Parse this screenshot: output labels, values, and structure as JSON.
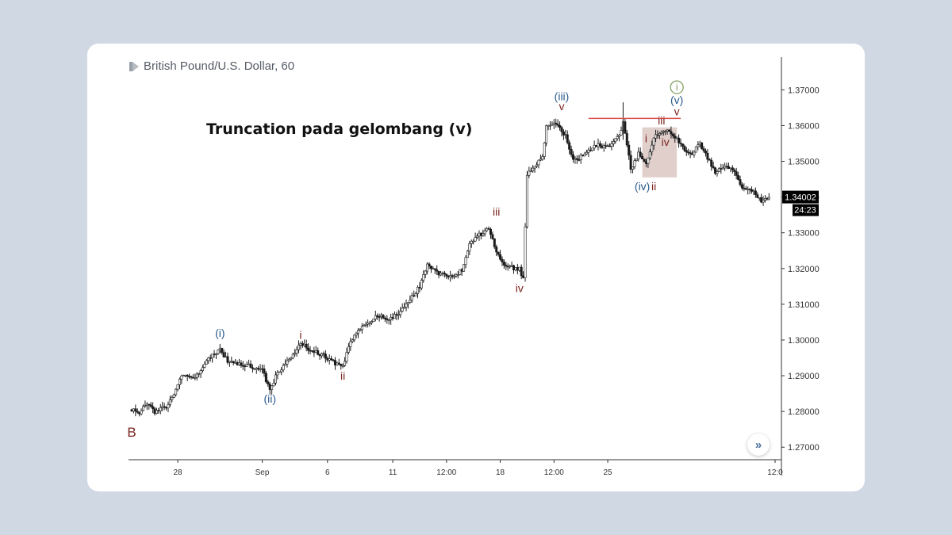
{
  "header": {
    "symbol_title": "British Pound/U.S. Dollar, 60"
  },
  "annotation": "Truncation pada gelombang (v)",
  "nav_button_glyph": "»",
  "colors": {
    "background": "#d0d9e3",
    "candle": "#1a1a1a",
    "wave_blue": "#2a5a8c",
    "wave_brown": "#7a2620",
    "truncation_line": "#d9534f",
    "highlight_box": "#c9a7a3",
    "circle_label": "#7a9a5a",
    "price_tag_bg": "#000000"
  },
  "chart_data": {
    "type": "candlestick",
    "title": "British Pound/U.S. Dollar, 60",
    "x_tick_labels": [
      "28",
      "Sep",
      "6",
      "11",
      "12:00",
      "18",
      "12:00",
      "25",
      "12:0"
    ],
    "y_ticks": [
      1.27,
      1.28,
      1.29,
      1.3,
      1.31,
      1.32,
      1.33,
      1.34,
      1.35,
      1.36,
      1.37
    ],
    "y_tick_labels": [
      "1.27000",
      "1.28000",
      "1.29000",
      "1.30000",
      "1.31000",
      "1.32000",
      "1.33000",
      "1.34000",
      "1.35000",
      "1.36000",
      "1.37000"
    ],
    "ylim": [
      1.2665,
      1.3785
    ],
    "last_price": "1.34002",
    "countdown": "24:23",
    "path": [
      [
        0,
        1.2805
      ],
      [
        2,
        1.2795
      ],
      [
        4,
        1.2825
      ],
      [
        6,
        1.28
      ],
      [
        9,
        1.2815
      ],
      [
        11,
        1.285
      ],
      [
        13,
        1.29
      ],
      [
        16,
        1.289
      ],
      [
        20,
        1.2945
      ],
      [
        23,
        1.2975
      ],
      [
        25,
        1.294
      ],
      [
        30,
        1.293
      ],
      [
        34,
        1.2915
      ],
      [
        36,
        1.286
      ],
      [
        38,
        1.291
      ],
      [
        40,
        1.293
      ],
      [
        42,
        1.296
      ],
      [
        44,
        1.299
      ],
      [
        47,
        1.297
      ],
      [
        50,
        1.2955
      ],
      [
        53,
        1.2935
      ],
      [
        55,
        1.2925
      ],
      [
        57,
        1.2995
      ],
      [
        59,
        1.303
      ],
      [
        61,
        1.304
      ],
      [
        64,
        1.307
      ],
      [
        67,
        1.3055
      ],
      [
        71,
        1.309
      ],
      [
        73,
        1.312
      ],
      [
        75,
        1.315
      ],
      [
        77,
        1.321
      ],
      [
        80,
        1.3185
      ],
      [
        83,
        1.3175
      ],
      [
        86,
        1.3195
      ],
      [
        88,
        1.327
      ],
      [
        90,
        1.329
      ],
      [
        93,
        1.331
      ],
      [
        95,
        1.325
      ],
      [
        97,
        1.3205
      ],
      [
        101,
        1.32
      ],
      [
        102,
        1.317
      ],
      [
        103,
        1.346
      ],
      [
        105,
        1.349
      ],
      [
        107,
        1.351
      ],
      [
        108,
        1.36
      ],
      [
        111,
        1.3605
      ],
      [
        113,
        1.357
      ],
      [
        115,
        1.35
      ],
      [
        118,
        1.352
      ],
      [
        121,
        1.3545
      ],
      [
        124,
        1.354
      ],
      [
        127,
        1.357
      ],
      [
        128,
        1.3605
      ],
      [
        130,
        1.348
      ],
      [
        132,
        1.352
      ],
      [
        134,
        1.349
      ],
      [
        136,
        1.357
      ],
      [
        138,
        1.358
      ],
      [
        140,
        1.3585
      ],
      [
        142,
        1.356
      ],
      [
        144,
        1.353
      ],
      [
        146,
        1.352
      ],
      [
        148,
        1.355
      ],
      [
        150,
        1.351
      ],
      [
        152,
        1.347
      ],
      [
        155,
        1.349
      ],
      [
        157,
        1.347
      ],
      [
        159,
        1.343
      ],
      [
        162,
        1.3415
      ],
      [
        164,
        1.339
      ],
      [
        166,
        1.34
      ]
    ],
    "truncation_level": 1.362,
    "truncation_line_x": [
      119,
      143
    ],
    "highlight_box": {
      "x": [
        133,
        142
      ],
      "y": [
        1.3455,
        1.3595
      ]
    },
    "wave_labels": [
      {
        "text": "(i)",
        "x": 23,
        "y": 1.2995,
        "group": "blue",
        "pos": "above"
      },
      {
        "text": "(ii)",
        "x": 36,
        "y": 1.286,
        "group": "blue",
        "pos": "below"
      },
      {
        "text": "i",
        "x": 44,
        "y": 1.299,
        "group": "brown",
        "pos": "above"
      },
      {
        "text": "ii",
        "x": 55,
        "y": 1.2925,
        "group": "brown",
        "pos": "below"
      },
      {
        "text": "iii",
        "x": 95,
        "y": 1.3335,
        "group": "brown",
        "pos": "above"
      },
      {
        "text": "iv",
        "x": 101,
        "y": 1.317,
        "group": "brown",
        "pos": "below"
      },
      {
        "text": "(iii)",
        "x": 112,
        "y": 1.3657,
        "group": "blue",
        "pos": "above"
      },
      {
        "text": "v",
        "x": 112,
        "y": 1.363,
        "group": "brown",
        "pos": "above"
      },
      {
        "text": "(iv)",
        "x": 133,
        "y": 1.3455,
        "group": "blue",
        "pos": "below"
      },
      {
        "text": "i",
        "x": 134,
        "y": 1.354,
        "group": "brown",
        "pos": "above"
      },
      {
        "text": "ii",
        "x": 136,
        "y": 1.3455,
        "group": "brown",
        "pos": "below"
      },
      {
        "text": "iii",
        "x": 138,
        "y": 1.359,
        "group": "brown",
        "pos": "above"
      },
      {
        "text": "iv",
        "x": 139,
        "y": 1.353,
        "group": "brown",
        "pos": "above"
      },
      {
        "text": "v",
        "x": 142,
        "y": 1.3615,
        "group": "brown",
        "pos": "above"
      },
      {
        "text": "(v)",
        "x": 142,
        "y": 1.3647,
        "group": "blue",
        "pos": "above"
      },
      {
        "text": "i",
        "x": 142,
        "y": 1.3685,
        "group": "green",
        "pos": "above"
      },
      {
        "text": "B",
        "x": 0,
        "y": 1.2765,
        "group": "brown",
        "pos": "below"
      }
    ]
  }
}
